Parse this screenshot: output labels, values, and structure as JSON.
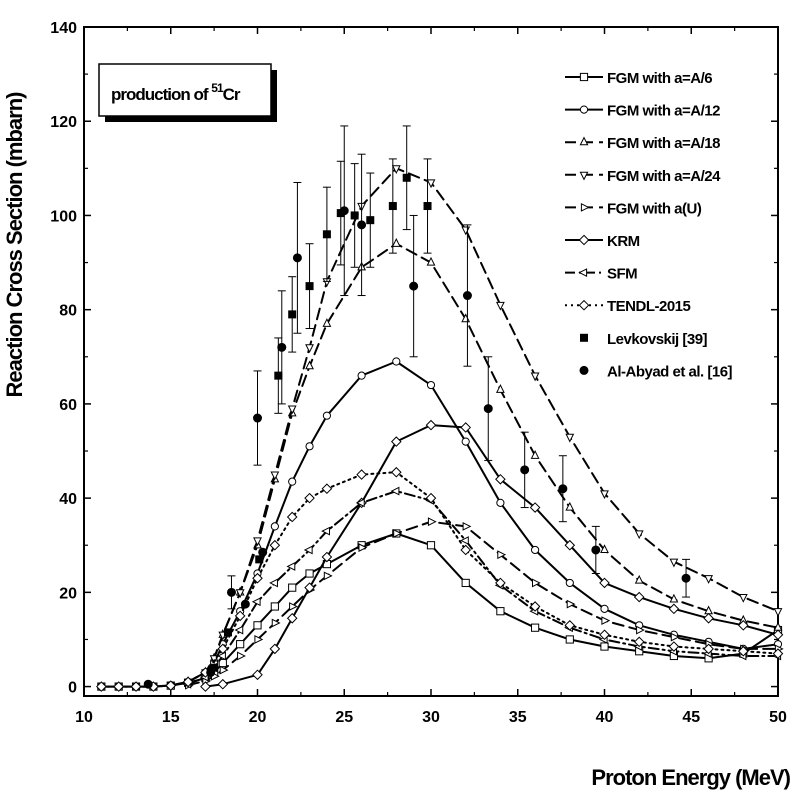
{
  "chart_data": {
    "type": "line",
    "xlabel": "Proton Energy (MeV)",
    "ylabel": "Reaction Cross Section (mbarn)",
    "xlim": [
      10,
      50
    ],
    "ylim": [
      -2,
      140
    ],
    "xticks": [
      10,
      15,
      20,
      25,
      30,
      35,
      40,
      45,
      50
    ],
    "yticks": [
      0,
      20,
      40,
      60,
      80,
      100,
      120,
      140
    ],
    "grid": false,
    "legend_position": "top-right",
    "annotation": {
      "text": "production of ",
      "superscript": "51",
      "element": "Cr"
    },
    "series": [
      {
        "name": "FGM with a=A/6",
        "style": "solid",
        "marker": "square",
        "x": [
          11,
          12,
          13,
          14,
          15,
          16,
          17,
          17.5,
          18,
          19,
          20,
          21,
          22,
          23,
          24,
          26,
          28,
          30,
          32,
          34,
          36,
          38,
          40,
          42,
          44,
          46,
          48,
          50
        ],
        "y": [
          0,
          0,
          0,
          0,
          0.2,
          0.8,
          1.8,
          3,
          5,
          9,
          13,
          17,
          21,
          24,
          26,
          30,
          32.5,
          30,
          22,
          16,
          12.5,
          10,
          8.5,
          7.5,
          6.5,
          6,
          7,
          12
        ]
      },
      {
        "name": "FGM with a=A/12",
        "style": "solid",
        "marker": "circle",
        "x": [
          11,
          12,
          13,
          14,
          15,
          16,
          17,
          17.5,
          18,
          19,
          20,
          21,
          22,
          23,
          24,
          26,
          28,
          30,
          32,
          34,
          36,
          38,
          40,
          42,
          44,
          46,
          48,
          50
        ],
        "y": [
          0,
          0,
          0,
          0,
          0.3,
          1,
          3,
          5,
          9,
          16,
          24,
          34,
          43.5,
          51,
          57.5,
          66,
          69,
          64,
          52,
          39,
          29,
          22,
          16.5,
          13,
          11,
          9.5,
          8,
          9
        ]
      },
      {
        "name": "FGM with a=A/18",
        "style": "dash",
        "marker": "triangle-up",
        "x": [
          16,
          17,
          17.5,
          18,
          19,
          20,
          21,
          22,
          23,
          24,
          26,
          28,
          30,
          32,
          34,
          36,
          38,
          40,
          42,
          44,
          46,
          48,
          50
        ],
        "y": [
          1,
          3,
          6,
          11,
          20,
          30,
          44,
          58,
          68,
          77,
          89,
          94,
          90,
          78,
          63,
          49,
          38,
          29,
          22.5,
          18.5,
          16,
          14,
          12.5
        ]
      },
      {
        "name": "FGM with a=A/24",
        "style": "dash",
        "marker": "triangle-down",
        "x": [
          16,
          17,
          17.5,
          18,
          19,
          20,
          21,
          22,
          23,
          24,
          26,
          28,
          30,
          32,
          34,
          36,
          38,
          40,
          42,
          44,
          46,
          48,
          50
        ],
        "y": [
          1,
          3,
          6,
          11,
          20,
          31,
          45,
          59,
          72,
          86,
          102,
          110,
          107,
          97,
          81,
          66,
          53,
          41,
          32.5,
          26.5,
          23,
          19,
          16
        ]
      },
      {
        "name": "FGM with a(U)",
        "style": "dash",
        "marker": "triangle-right",
        "x": [
          16,
          17,
          17.5,
          18,
          19,
          20,
          21,
          22,
          23,
          24,
          26,
          28,
          30,
          32,
          34,
          36,
          38,
          40,
          42,
          44,
          46,
          48,
          50
        ],
        "y": [
          0.3,
          1.2,
          2.2,
          3.5,
          6.5,
          10,
          13.5,
          17,
          20.5,
          23.5,
          29.5,
          32.5,
          35,
          34,
          28,
          22,
          17.5,
          14,
          12,
          10.5,
          9,
          8,
          8
        ]
      },
      {
        "name": "KRM",
        "style": "solid",
        "marker": "diamond",
        "x": [
          17,
          18,
          20,
          21,
          22,
          23,
          24,
          26,
          28,
          30,
          32,
          34,
          36,
          38,
          40,
          42,
          44,
          46,
          48,
          50
        ],
        "y": [
          0,
          0.5,
          2.5,
          8,
          14.5,
          21,
          27.5,
          39,
          52,
          55.5,
          55,
          44,
          38,
          30,
          22,
          19,
          16.5,
          14.5,
          13,
          11
        ]
      },
      {
        "name": "SFM",
        "style": "dashdot",
        "marker": "triangle-left",
        "x": [
          16,
          17,
          17.5,
          18,
          19,
          20,
          21,
          22,
          23,
          24,
          26,
          28,
          30,
          32,
          34,
          36,
          38,
          40,
          42,
          44,
          46,
          48,
          50
        ],
        "y": [
          0.5,
          2,
          4,
          6.5,
          12,
          18,
          22,
          25.5,
          29,
          33,
          39,
          41.5,
          39.5,
          31,
          21.5,
          16,
          12.5,
          10,
          8.5,
          7.5,
          7,
          6.5,
          6.5
        ]
      },
      {
        "name": "TENDL-2015",
        "style": "dot",
        "marker": "open-diamond",
        "x": [
          11,
          12,
          13,
          14,
          15,
          16,
          17,
          18,
          19,
          20,
          21,
          22,
          23,
          24,
          26,
          28,
          30,
          32,
          34,
          36,
          38,
          40,
          42,
          44,
          46,
          48,
          50
        ],
        "y": [
          0,
          0,
          0,
          0,
          0.2,
          1,
          3,
          8,
          15,
          23,
          30,
          36,
          40,
          42,
          45,
          45.5,
          40,
          29,
          22,
          17,
          13,
          11,
          9.5,
          8.5,
          8,
          7.5,
          7
        ]
      },
      {
        "name": "Levkovskij [39]",
        "style": "none",
        "marker": "filled-square",
        "x": [
          17.5,
          18.3,
          20.1,
          21.2,
          22,
          23,
          24,
          24.8,
          25.6,
          26.5,
          27.8,
          28.6,
          29.8
        ],
        "y": [
          4,
          11.5,
          27,
          66,
          79,
          85,
          96,
          100.5,
          100,
          99,
          102,
          108,
          102
        ],
        "error": [
          0,
          0,
          0,
          8,
          8,
          9,
          10,
          11,
          11,
          10,
          10,
          11,
          10
        ]
      },
      {
        "name": "Al-Abyad et al. [16]",
        "style": "none",
        "marker": "filled-circle",
        "x": [
          13.7,
          17.3,
          18.5,
          19.3,
          20,
          20.3,
          21.4,
          22.3,
          25,
          26,
          29,
          32.1,
          33.3,
          35.4,
          37.6,
          39.5,
          44.7
        ],
        "y": [
          0.5,
          3,
          20,
          17.5,
          57,
          28.5,
          72,
          91,
          101,
          98,
          85,
          83,
          59,
          46,
          42,
          29,
          23
        ],
        "error": [
          0,
          0,
          3.5,
          0,
          10,
          0,
          12,
          16,
          18,
          15,
          15,
          15,
          11,
          8,
          7,
          5,
          4
        ]
      }
    ]
  }
}
